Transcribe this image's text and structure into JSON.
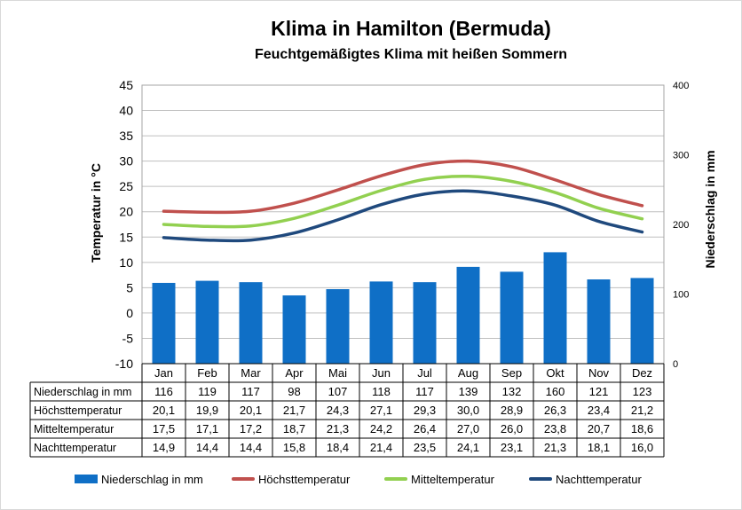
{
  "chart_data": {
    "type": "bar+line",
    "title": "Klima in Hamilton (Bermuda)",
    "subtitle": "Feuchtgemäßigtes Klima mit heißen Sommern",
    "ylabel_left": "Temperatur in °C",
    "ylabel_right": "Niederschlag in mm",
    "ylim_left": [
      -10,
      45
    ],
    "ylim_right": [
      0,
      400
    ],
    "yticks_left": [
      "45",
      "40",
      "35",
      "30",
      "25",
      "20",
      "15",
      "10",
      "5",
      "0",
      "-5",
      "-10"
    ],
    "yticks_right": [
      "400",
      "300",
      "200",
      "100",
      "0"
    ],
    "categories": [
      "Jan",
      "Feb",
      "Mar",
      "Apr",
      "Mai",
      "Jun",
      "Jul",
      "Aug",
      "Sep",
      "Okt",
      "Nov",
      "Dez"
    ],
    "grid": true,
    "legend_position": "bottom",
    "series": [
      {
        "name": "Niederschlag in mm",
        "type": "bar",
        "axis": "right",
        "color": "#0f6fc6",
        "values": [
          116,
          119,
          117,
          98,
          107,
          118,
          117,
          139,
          132,
          160,
          121,
          123
        ],
        "labels": [
          "116",
          "119",
          "117",
          "98",
          "107",
          "118",
          "117",
          "139",
          "132",
          "160",
          "121",
          "123"
        ]
      },
      {
        "name": "Höchsttemperatur",
        "type": "line",
        "axis": "left",
        "color": "#c0504d",
        "values": [
          20.1,
          19.9,
          20.1,
          21.7,
          24.3,
          27.1,
          29.3,
          30.0,
          28.9,
          26.3,
          23.4,
          21.2
        ],
        "labels": [
          "20,1",
          "19,9",
          "20,1",
          "21,7",
          "24,3",
          "27,1",
          "29,3",
          "30,0",
          "28,9",
          "26,3",
          "23,4",
          "21,2"
        ]
      },
      {
        "name": "Mitteltemperatur",
        "type": "line",
        "axis": "left",
        "color": "#92d050",
        "values": [
          17.5,
          17.1,
          17.2,
          18.7,
          21.3,
          24.2,
          26.4,
          27.0,
          26.0,
          23.8,
          20.7,
          18.6
        ],
        "labels": [
          "17,5",
          "17,1",
          "17,2",
          "18,7",
          "21,3",
          "24,2",
          "26,4",
          "27,0",
          "26,0",
          "23,8",
          "20,7",
          "18,6"
        ]
      },
      {
        "name": "Nachttemperatur",
        "type": "line",
        "axis": "left",
        "color": "#1f497d",
        "values": [
          14.9,
          14.4,
          14.4,
          15.8,
          18.4,
          21.4,
          23.5,
          24.1,
          23.1,
          21.3,
          18.1,
          16.0
        ],
        "labels": [
          "14,9",
          "14,4",
          "14,4",
          "15,8",
          "18,4",
          "21,4",
          "23,5",
          "24,1",
          "23,1",
          "21,3",
          "18,1",
          "16,0"
        ]
      }
    ]
  }
}
